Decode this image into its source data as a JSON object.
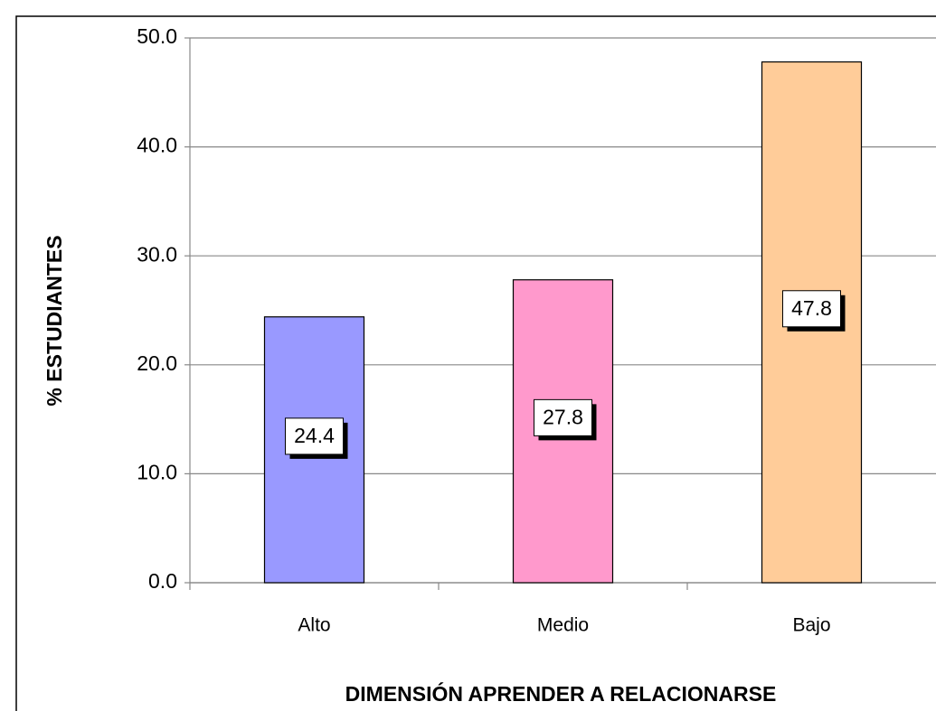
{
  "chart_data": {
    "type": "bar",
    "x_label": "DIMENSIÓN APRENDER A RELACIONARSE",
    "y_label": "% ESTUDIANTES",
    "categories": [
      "Alto",
      "Medio",
      "Bajo"
    ],
    "values": [
      24.4,
      27.8,
      47.8
    ],
    "colors": [
      "#9999ff",
      "#ff99cc",
      "#ffcc99"
    ],
    "ylim": [
      0,
      50
    ],
    "yticks": [
      {
        "value": 0,
        "label": "0.0"
      },
      {
        "value": 10,
        "label": "10.0"
      },
      {
        "value": 20,
        "label": "20.0"
      },
      {
        "value": 30,
        "label": "30.0"
      },
      {
        "value": 40,
        "label": "40.0"
      },
      {
        "value": 50,
        "label": "50.0"
      }
    ],
    "grid": true
  }
}
